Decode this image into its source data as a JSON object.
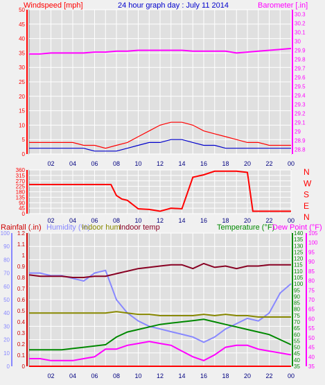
{
  "chart_data": [
    {
      "type": "line",
      "title": "24 hour graph day : July 11 2014",
      "left_label": "Windspeed [mph]",
      "right_label": "Barometer [.in]",
      "x_ticks": [
        "02",
        "04",
        "06",
        "08",
        "10",
        "12",
        "14",
        "16",
        "18",
        "20",
        "22",
        "00"
      ],
      "x_range_hours": [
        0,
        24
      ],
      "y_left_ticks": [
        "0",
        "5",
        "10",
        "15",
        "20",
        "25",
        "30",
        "35",
        "40",
        "45",
        "50"
      ],
      "y_left_range": [
        0,
        50
      ],
      "y_right_ticks": [
        "28.8",
        "28.9",
        "29",
        "29.1",
        "29.2",
        "29.3",
        "29.4",
        "29.5",
        "29.6",
        "29.7",
        "29.8",
        "29.9",
        "30",
        "30.1",
        "30.2",
        "30.3"
      ],
      "y_right_range": [
        28.75,
        30.35
      ],
      "grid": true,
      "colors": {
        "gust": "#ff0000",
        "average": "#0000cc",
        "barometer": "#ff00ff",
        "left_axis": "#ff0000",
        "right_axis": "#ff00ff",
        "title": "#0000cc"
      },
      "series": [
        {
          "axis": "right",
          "color": "#ff00ff",
          "x": [
            0,
            1,
            2,
            3,
            4,
            5,
            6,
            7,
            8,
            9,
            10,
            11,
            12,
            13,
            14,
            15,
            16,
            17,
            18,
            19,
            20,
            21,
            22,
            23,
            24
          ],
          "values": [
            29.86,
            29.86,
            29.87,
            29.87,
            29.87,
            29.87,
            29.88,
            29.88,
            29.89,
            29.89,
            29.9,
            29.9,
            29.9,
            29.9,
            29.9,
            29.89,
            29.89,
            29.89,
            29.89,
            29.87,
            29.88,
            29.89,
            29.9,
            29.91,
            29.92
          ]
        },
        {
          "axis": "left",
          "color": "#ff0000",
          "x": [
            0,
            1,
            2,
            3,
            4,
            5,
            6,
            7,
            8,
            9,
            10,
            11,
            12,
            13,
            14,
            15,
            16,
            17,
            18,
            19,
            20,
            21,
            22,
            23,
            24
          ],
          "values": [
            4,
            4,
            4,
            4,
            4,
            3,
            3,
            2,
            3,
            4,
            6,
            8,
            10,
            11,
            11,
            10,
            8,
            7,
            6,
            5,
            4,
            4,
            3,
            3,
            3
          ]
        },
        {
          "axis": "left",
          "color": "#0000cc",
          "x": [
            0,
            1,
            2,
            3,
            4,
            5,
            6,
            7,
            8,
            9,
            10,
            11,
            12,
            13,
            14,
            15,
            16,
            17,
            18,
            19,
            20,
            21,
            22,
            23,
            24
          ],
          "values": [
            2,
            2,
            2,
            2,
            2,
            2,
            1,
            1,
            1,
            2,
            3,
            4,
            4,
            5,
            5,
            4,
            3,
            3,
            2,
            2,
            2,
            2,
            2,
            2,
            2
          ]
        }
      ]
    },
    {
      "type": "line",
      "left_label": "",
      "y_left_ticks": [
        "0",
        "45",
        "90",
        "135",
        "180",
        "225",
        "270",
        "315",
        "360"
      ],
      "y_left_range": [
        0,
        360
      ],
      "y_right_ticks": [
        "N",
        "W",
        "S",
        "E",
        "N"
      ],
      "x_ticks": [
        "02",
        "04",
        "06",
        "08",
        "10",
        "12",
        "14",
        "16",
        "18",
        "20",
        "22",
        "00"
      ],
      "x_range_hours": [
        0,
        24
      ],
      "grid": true,
      "series": [
        {
          "color": "#ff0000",
          "x": [
            0,
            1,
            2,
            3,
            4,
            5,
            6,
            7,
            7.5,
            8,
            8.5,
            9,
            10,
            11,
            12,
            13,
            14,
            15,
            16,
            17,
            18,
            19,
            20,
            20.5,
            21,
            22,
            23,
            24
          ],
          "values": [
            240,
            240,
            240,
            240,
            240,
            240,
            240,
            240,
            240,
            150,
            120,
            110,
            40,
            35,
            20,
            45,
            40,
            300,
            320,
            350,
            350,
            350,
            340,
            20,
            20,
            20,
            20,
            20
          ]
        }
      ]
    },
    {
      "type": "line",
      "left_labels": [
        "Rainfall (.in)",
        "Humidity (%)",
        "Indoor hum",
        "Indoor temp"
      ],
      "right_labels": [
        "Temperature (°F)",
        "Dew Point (°F)"
      ],
      "left_label_colors": [
        "#cc0000",
        "#8888ff",
        "#888800",
        "#880022"
      ],
      "right_label_colors": [
        "#008800",
        "#ff00ff"
      ],
      "rain_ticks": [
        "0",
        "0.1",
        "0.2",
        "0.3",
        "0.4",
        "0.5",
        "0.6",
        "0.7",
        "0.8",
        "0.9",
        "1",
        "1.1",
        "1.2"
      ],
      "rain_range": [
        0,
        1.2
      ],
      "humidity_ticks": [
        "0",
        "10",
        "20",
        "30",
        "40",
        "50",
        "60",
        "70",
        "80",
        "90",
        "100"
      ],
      "humidity_range": [
        0,
        100
      ],
      "temp_ticks": [
        "35",
        "40",
        "45",
        "50",
        "55",
        "60",
        "65",
        "70",
        "75",
        "80",
        "85",
        "90",
        "95",
        "100",
        "105",
        "110",
        "115",
        "120",
        "125",
        "130",
        "135",
        "140"
      ],
      "temp_range": [
        35,
        140
      ],
      "dew_ticks": [
        "35",
        "40",
        "45",
        "50",
        "55",
        "60",
        "65",
        "70",
        "75",
        "80",
        "85",
        "90",
        "95",
        "100",
        "105"
      ],
      "dew_range": [
        35,
        105
      ],
      "x_ticks": [
        "02",
        "04",
        "06",
        "08",
        "10",
        "12",
        "14",
        "16",
        "18",
        "20",
        "22",
        "00"
      ],
      "x_range_hours": [
        0,
        24
      ],
      "grid": true,
      "series": [
        {
          "name": "Rainfall (.in)",
          "axis": "rain",
          "color": "#ff0000",
          "x": [
            0,
            24
          ],
          "values": [
            0,
            0
          ]
        },
        {
          "name": "Humidity (%)",
          "axis": "humidity",
          "color": "#8888ff",
          "x": [
            0,
            1,
            2,
            3,
            4,
            5,
            6,
            7,
            8,
            9,
            10,
            11,
            12,
            13,
            14,
            15,
            16,
            17,
            18,
            19,
            20,
            21,
            22,
            23,
            24
          ],
          "values": [
            70,
            70,
            68,
            68,
            66,
            64,
            70,
            72,
            50,
            40,
            34,
            30,
            28,
            26,
            24,
            22,
            18,
            22,
            28,
            32,
            36,
            34,
            40,
            55,
            62
          ]
        },
        {
          "name": "Indoor hum",
          "axis": "humidity",
          "color": "#888800",
          "x": [
            0,
            1,
            2,
            3,
            4,
            5,
            6,
            7,
            8,
            9,
            10,
            11,
            12,
            13,
            14,
            15,
            16,
            17,
            18,
            19,
            20,
            21,
            22,
            23,
            24
          ],
          "values": [
            40,
            40,
            40,
            40,
            40,
            40,
            40,
            40,
            41,
            40,
            39,
            39,
            38,
            38,
            38,
            38,
            39,
            38,
            39,
            38,
            38,
            37,
            37,
            37,
            37
          ]
        },
        {
          "name": "Indoor temp",
          "axis": "temp",
          "color": "#880022",
          "x": [
            0,
            1,
            2,
            3,
            4,
            5,
            6,
            7,
            8,
            9,
            10,
            11,
            12,
            13,
            14,
            15,
            16,
            17,
            18,
            19,
            20,
            21,
            22,
            23,
            24
          ],
          "values": [
            107,
            106,
            106,
            106,
            105,
            105,
            106,
            106,
            108,
            110,
            112,
            113,
            114,
            115,
            115,
            112,
            116,
            113,
            114,
            112,
            114,
            114,
            115,
            115,
            115
          ]
        },
        {
          "name": "Temperature (°F)",
          "axis": "temp",
          "color": "#008800",
          "x": [
            0,
            1,
            2,
            3,
            4,
            5,
            6,
            7,
            8,
            9,
            10,
            11,
            12,
            13,
            14,
            15,
            16,
            17,
            18,
            19,
            20,
            21,
            22,
            23,
            24
          ],
          "values": [
            48,
            48,
            48,
            48,
            49,
            50,
            51,
            52,
            58,
            62,
            64,
            66,
            68,
            69,
            70,
            71,
            72,
            70,
            68,
            66,
            64,
            62,
            60,
            56,
            52
          ]
        },
        {
          "name": "Dew Point (°F)",
          "axis": "dew",
          "color": "#ff00ff",
          "x": [
            0,
            1,
            2,
            3,
            4,
            5,
            6,
            7,
            8,
            9,
            10,
            11,
            12,
            13,
            14,
            15,
            16,
            17,
            18,
            19,
            20,
            21,
            22,
            23,
            24
          ],
          "values": [
            39,
            39,
            38,
            38,
            38,
            39,
            40,
            44,
            44,
            46,
            47,
            48,
            47,
            46,
            43,
            40,
            38,
            41,
            45,
            46,
            46,
            44,
            43,
            42,
            41
          ]
        }
      ]
    }
  ]
}
